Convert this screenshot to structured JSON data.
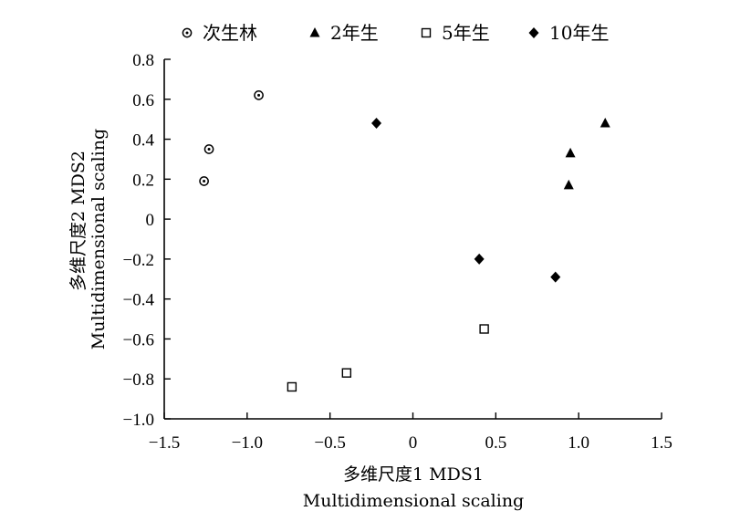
{
  "chart_data": {
    "type": "scatter",
    "title": "",
    "xlabel": [
      "多维尺度1 MDS1",
      "Multidimensional scaling"
    ],
    "ylabel": [
      "多维尺度2 MDS2",
      "Multidimensional scaling"
    ],
    "xlim": [
      -1.5,
      1.5
    ],
    "ylim": [
      -1.0,
      0.8
    ],
    "x_ticks": [
      -1.5,
      -1.0,
      -0.5,
      0,
      0.5,
      1.0,
      1.5
    ],
    "x_tick_labels": [
      "−1.5",
      "−1.0",
      "−0.5",
      "0",
      "0.5",
      "1.0",
      "1.5"
    ],
    "y_ticks": [
      0.8,
      0.6,
      0.4,
      0.2,
      0,
      -0.2,
      -0.4,
      -0.6,
      -0.8,
      -1.0
    ],
    "y_tick_labels": [
      "0.8",
      "0.6",
      "0.4",
      "0.2",
      "0",
      "−0.2",
      "−0.4",
      "−0.6",
      "−0.8",
      "−1.0"
    ],
    "grid": false,
    "legend_position": "top",
    "series": [
      {
        "name": "次生林",
        "marker": "circle-dot",
        "points": [
          [
            -1.26,
            0.19
          ],
          [
            -1.23,
            0.35
          ],
          [
            -0.93,
            0.62
          ]
        ]
      },
      {
        "name": "2年生",
        "marker": "triangle",
        "points": [
          [
            1.16,
            0.48
          ],
          [
            0.95,
            0.33
          ],
          [
            0.94,
            0.17
          ]
        ]
      },
      {
        "name": "5年生",
        "marker": "square-open",
        "points": [
          [
            -0.73,
            -0.84
          ],
          [
            -0.4,
            -0.77
          ],
          [
            0.43,
            -0.55
          ]
        ]
      },
      {
        "name": "10年生",
        "marker": "diamond",
        "points": [
          [
            -0.22,
            0.48
          ],
          [
            0.4,
            -0.2
          ],
          [
            0.86,
            -0.29
          ]
        ]
      }
    ]
  }
}
